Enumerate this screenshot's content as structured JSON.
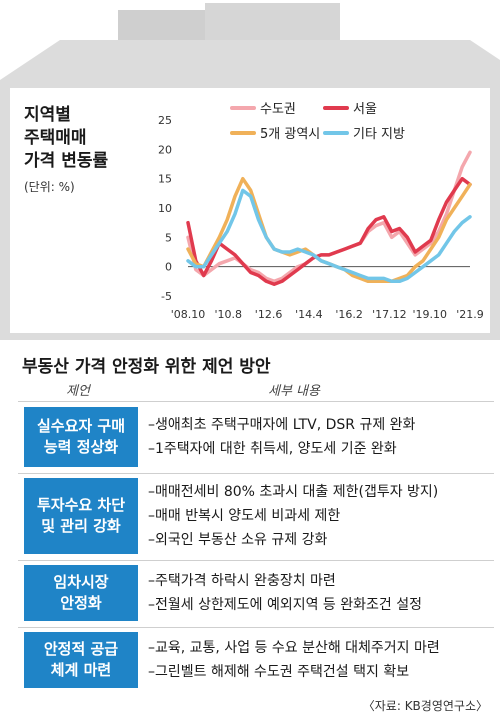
{
  "title_lines": [
    "지역별",
    "주택매매",
    "가격 변동률"
  ],
  "unit": "(단위: %)",
  "chart_data": {
    "type": "line",
    "x_ticks": [
      "'08.10",
      "'10.8",
      "'12.6",
      "'14.4",
      "'16.2",
      "'17.12",
      "'19.10",
      "'21.9"
    ],
    "y_ticks": [
      25,
      20,
      15,
      10,
      5,
      0,
      -5
    ],
    "ylim": [
      -5,
      25
    ],
    "legend_position": "top",
    "series": [
      {
        "name": "수도권",
        "color": "#f4a7ad",
        "points": [
          [
            0,
            5
          ],
          [
            1,
            -0.5
          ],
          [
            2,
            -1.5
          ],
          [
            3,
            -0.5
          ],
          [
            4,
            0.5
          ],
          [
            5,
            1
          ],
          [
            6,
            1.5
          ],
          [
            7,
            0.5
          ],
          [
            8,
            -0.5
          ],
          [
            9,
            -1
          ],
          [
            10,
            -2
          ],
          [
            11,
            -2.5
          ],
          [
            12,
            -2
          ],
          [
            13,
            -1
          ],
          [
            14,
            0
          ],
          [
            15,
            0.5
          ],
          [
            16,
            1.5
          ],
          [
            17,
            2
          ],
          [
            18,
            2
          ],
          [
            19,
            2.5
          ],
          [
            20,
            3
          ],
          [
            21,
            3.5
          ],
          [
            22,
            4
          ],
          [
            23,
            6
          ],
          [
            24,
            7
          ],
          [
            25,
            7.5
          ],
          [
            26,
            5
          ],
          [
            27,
            6
          ],
          [
            28,
            4
          ],
          [
            29,
            2
          ],
          [
            30,
            3
          ],
          [
            31,
            4
          ],
          [
            32,
            6
          ],
          [
            33,
            9
          ],
          [
            34,
            13
          ],
          [
            35,
            17
          ],
          [
            36,
            19.5
          ]
        ]
      },
      {
        "name": "서울",
        "color": "#e03a4e",
        "points": [
          [
            0,
            7.5
          ],
          [
            1,
            1
          ],
          [
            2,
            -1.5
          ],
          [
            3,
            1
          ],
          [
            4,
            4
          ],
          [
            5,
            3
          ],
          [
            6,
            2
          ],
          [
            7,
            0.5
          ],
          [
            8,
            -1
          ],
          [
            9,
            -1.5
          ],
          [
            10,
            -2.5
          ],
          [
            11,
            -3
          ],
          [
            12,
            -2.5
          ],
          [
            13,
            -1.5
          ],
          [
            14,
            -0.5
          ],
          [
            15,
            0.5
          ],
          [
            16,
            1.5
          ],
          [
            17,
            2
          ],
          [
            18,
            2
          ],
          [
            19,
            2.5
          ],
          [
            20,
            3
          ],
          [
            21,
            3.5
          ],
          [
            22,
            4
          ],
          [
            23,
            6.5
          ],
          [
            24,
            8
          ],
          [
            25,
            8.5
          ],
          [
            26,
            6
          ],
          [
            27,
            6.5
          ],
          [
            28,
            5
          ],
          [
            29,
            2.5
          ],
          [
            30,
            3.5
          ],
          [
            31,
            4.5
          ],
          [
            32,
            8
          ],
          [
            33,
            11
          ],
          [
            34,
            13
          ],
          [
            35,
            15
          ],
          [
            36,
            14
          ]
        ]
      },
      {
        "name": "5개 광역시",
        "color": "#f0b159",
        "points": [
          [
            0,
            3
          ],
          [
            1,
            0.5
          ],
          [
            2,
            0
          ],
          [
            3,
            2.5
          ],
          [
            4,
            5
          ],
          [
            5,
            8
          ],
          [
            6,
            12
          ],
          [
            7,
            15
          ],
          [
            8,
            13
          ],
          [
            9,
            9
          ],
          [
            10,
            5
          ],
          [
            11,
            3
          ],
          [
            12,
            2.5
          ],
          [
            13,
            2
          ],
          [
            14,
            2.5
          ],
          [
            15,
            3
          ],
          [
            16,
            2
          ],
          [
            17,
            1
          ],
          [
            18,
            0.5
          ],
          [
            19,
            0
          ],
          [
            20,
            -0.5
          ],
          [
            21,
            -1.5
          ],
          [
            22,
            -2
          ],
          [
            23,
            -2.5
          ],
          [
            24,
            -2.5
          ],
          [
            25,
            -2.5
          ],
          [
            26,
            -2.5
          ],
          [
            27,
            -2
          ],
          [
            28,
            -1.5
          ],
          [
            29,
            0
          ],
          [
            30,
            1
          ],
          [
            31,
            3
          ],
          [
            32,
            5
          ],
          [
            33,
            8
          ],
          [
            34,
            10
          ],
          [
            35,
            12
          ],
          [
            36,
            14
          ]
        ]
      },
      {
        "name": "기타 지방",
        "color": "#72c6e8",
        "points": [
          [
            0,
            1
          ],
          [
            1,
            0
          ],
          [
            2,
            0
          ],
          [
            3,
            2
          ],
          [
            4,
            4
          ],
          [
            5,
            6
          ],
          [
            6,
            9
          ],
          [
            7,
            13
          ],
          [
            8,
            12
          ],
          [
            9,
            8
          ],
          [
            10,
            5
          ],
          [
            11,
            3
          ],
          [
            12,
            2.5
          ],
          [
            13,
            2.5
          ],
          [
            14,
            3
          ],
          [
            15,
            2.5
          ],
          [
            16,
            2
          ],
          [
            17,
            1
          ],
          [
            18,
            0.5
          ],
          [
            19,
            0
          ],
          [
            20,
            -0.5
          ],
          [
            21,
            -1
          ],
          [
            22,
            -1.5
          ],
          [
            23,
            -2
          ],
          [
            24,
            -2
          ],
          [
            25,
            -2
          ],
          [
            26,
            -2.5
          ],
          [
            27,
            -2.5
          ],
          [
            28,
            -2
          ],
          [
            29,
            -1
          ],
          [
            30,
            0
          ],
          [
            31,
            1
          ],
          [
            32,
            2
          ],
          [
            33,
            4
          ],
          [
            34,
            6
          ],
          [
            35,
            7.5
          ],
          [
            36,
            8.5
          ]
        ]
      }
    ]
  },
  "proposal_title": "부동산 가격 안정화 위한 제언 방안",
  "col_headers": {
    "left": "제언",
    "right": "세부 내용"
  },
  "proposals": [
    {
      "label": [
        "실수요자 구매",
        "능력 정상화"
      ],
      "items": [
        "–생애최초 주택구매자에 LTV, DSR 규제 완화",
        "–1주택자에 대한 취득세, 양도세 기준 완화"
      ]
    },
    {
      "label": [
        "투자수요 차단",
        "및 관리 강화"
      ],
      "items": [
        "–매매전세비 80% 초과시 대출 제한(갭투자 방지)",
        "–매매 반복시 양도세 비과세 제한",
        "–외국인 부동산 소유 규제 강화"
      ]
    },
    {
      "label": [
        "임차시장",
        "안정화"
      ],
      "items": [
        "–주택가격 하락시 완충장치 마련",
        "–전월세 상한제도에 예외지역 등 완화조건 설정"
      ]
    },
    {
      "label": [
        "안정적 공급",
        "체계 마련"
      ],
      "items": [
        "–교육, 교통, 사업 등 수요 분산해 대체주거지 마련",
        "–그린벨트 해제해 수도권 주택건설 택지 확보"
      ]
    }
  ],
  "source": "〈자료: KB경영연구소〉"
}
